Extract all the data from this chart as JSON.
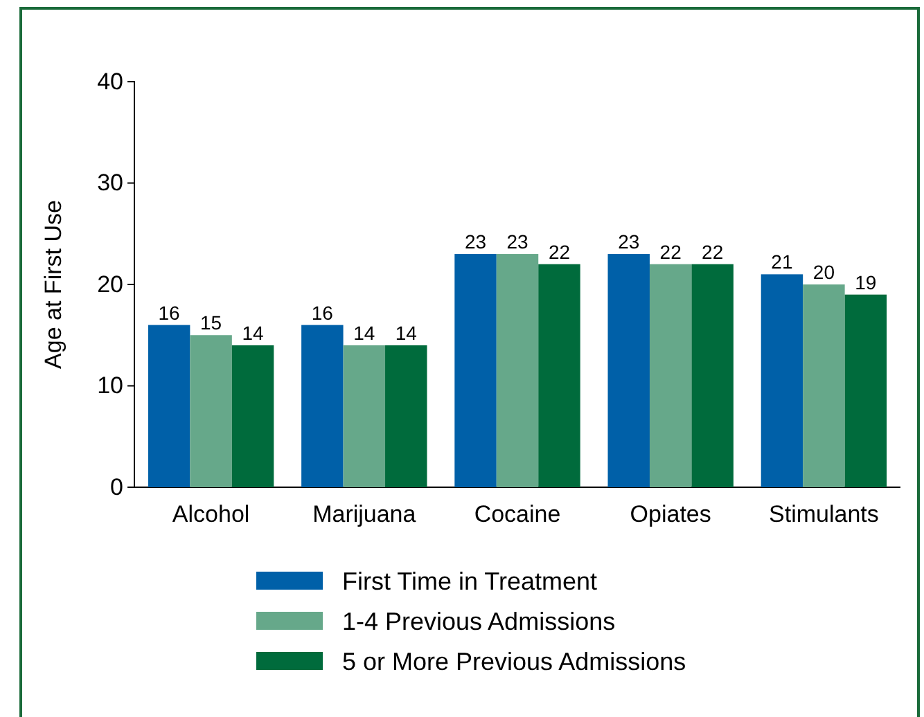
{
  "chart_data": {
    "type": "bar",
    "ylabel": "Age at First Use",
    "categories": [
      "Alcohol",
      "Marijuana",
      "Cocaine",
      "Opiates",
      "Stimulants"
    ],
    "series": [
      {
        "name": "First Time in Treatment",
        "color": "#0060a8",
        "values": [
          16,
          16,
          23,
          23,
          21
        ]
      },
      {
        "name": "1-4 Previous Admissions",
        "color": "#66a88a",
        "values": [
          15,
          14,
          23,
          22,
          20
        ]
      },
      {
        "name": "5 or More Previous Admissions",
        "color": "#006b3c",
        "values": [
          14,
          14,
          22,
          22,
          19
        ]
      }
    ],
    "ylim": [
      0,
      40
    ],
    "yticks": [
      0,
      10,
      20,
      30,
      40
    ],
    "data_labels": true,
    "legend": "bottom",
    "grid": false
  }
}
